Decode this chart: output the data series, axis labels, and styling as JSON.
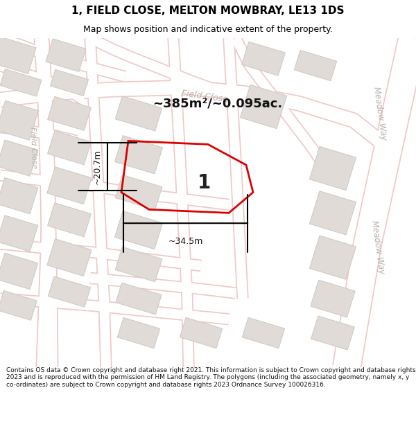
{
  "title": "1, FIELD CLOSE, MELTON MOWBRAY, LE13 1DS",
  "subtitle": "Map shows position and indicative extent of the property.",
  "area_text": "~385m²/~0.095ac.",
  "dim_width": "~34.5m",
  "dim_height": "~20.7m",
  "plot_label": "1",
  "footer": "Contains OS data © Crown copyright and database right 2021. This information is subject to Crown copyright and database rights 2023 and is reproduced with the permission of HM Land Registry. The polygons (including the associated geometry, namely x, y co-ordinates) are subject to Crown copyright and database rights 2023 Ordnance Survey 100026316.",
  "bg_color": "#f7f5f3",
  "road_color": "#ffffff",
  "road_edge_color": "#f0c8c8",
  "building_color": "#e0dbd6",
  "building_edge_color": "#ccc8c2",
  "plot_color": "#dd0000",
  "street_label_color": "#b8b0a8",
  "title_color": "#000000",
  "footer_color": "#111111",
  "title_fontsize": 11,
  "subtitle_fontsize": 9,
  "area_fontsize": 13,
  "plot_label_fontsize": 20
}
